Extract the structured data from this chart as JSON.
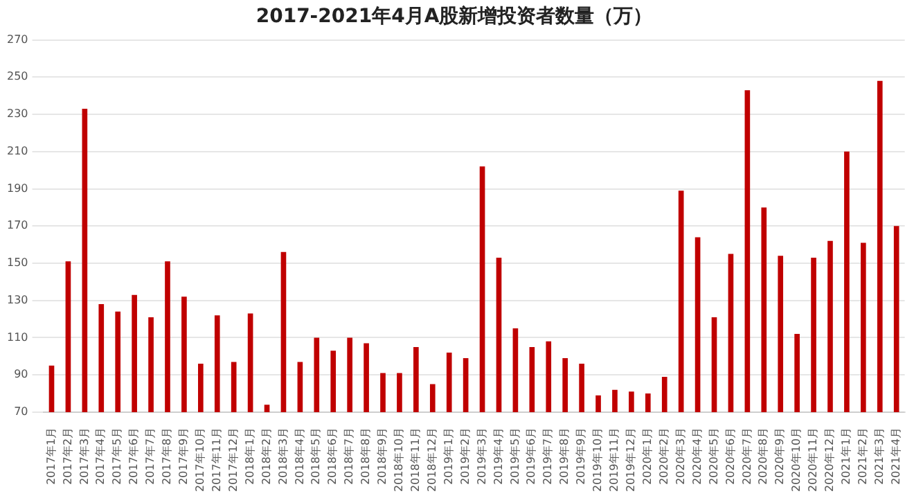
{
  "chart_data": {
    "type": "bar",
    "title": "2017-2021年4月A股新增投资者数量（万）",
    "categories": [
      "2017年1月",
      "2017年2月",
      "2017年3月",
      "2017年4月",
      "2017年5月",
      "2017年6月",
      "2017年7月",
      "2017年8月",
      "2017年9月",
      "2017年10月",
      "2017年11月",
      "2017年12月",
      "2018年1月",
      "2018年2月",
      "2018年3月",
      "2018年4月",
      "2018年5月",
      "2018年6月",
      "2018年7月",
      "2018年8月",
      "2018年9月",
      "2018年10月",
      "2018年11月",
      "2018年12月",
      "2019年1月",
      "2019年2月",
      "2019年3月",
      "2019年4月",
      "2019年5月",
      "2019年6月",
      "2019年7月",
      "2019年8月",
      "2019年9月",
      "2019年10月",
      "2019年11月",
      "2019年12月",
      "2020年1月",
      "2020年2月",
      "2020年3月",
      "2020年4月",
      "2020年5月",
      "2020年6月",
      "2020年7月",
      "2020年8月",
      "2020年9月",
      "2020年10月",
      "2020年11月",
      "2020年12月",
      "2021年1月",
      "2021年2月",
      "2021年3月",
      "2021年4月"
    ],
    "values": [
      95,
      151,
      233,
      128,
      124,
      133,
      121,
      151,
      132,
      96,
      122,
      97,
      123,
      74,
      156,
      97,
      110,
      103,
      110,
      107,
      91,
      91,
      105,
      85,
      102,
      99,
      202,
      153,
      115,
      105,
      108,
      99,
      96,
      79,
      82,
      81,
      80,
      89,
      189,
      164,
      121,
      155,
      243,
      180,
      154,
      112,
      153,
      162,
      210,
      161,
      248,
      170
    ],
    "color": "#c00000",
    "ylim": [
      70,
      270
    ],
    "yticks": [
      70,
      90,
      110,
      130,
      150,
      170,
      190,
      210,
      230,
      250,
      270
    ],
    "grid": "y"
  }
}
